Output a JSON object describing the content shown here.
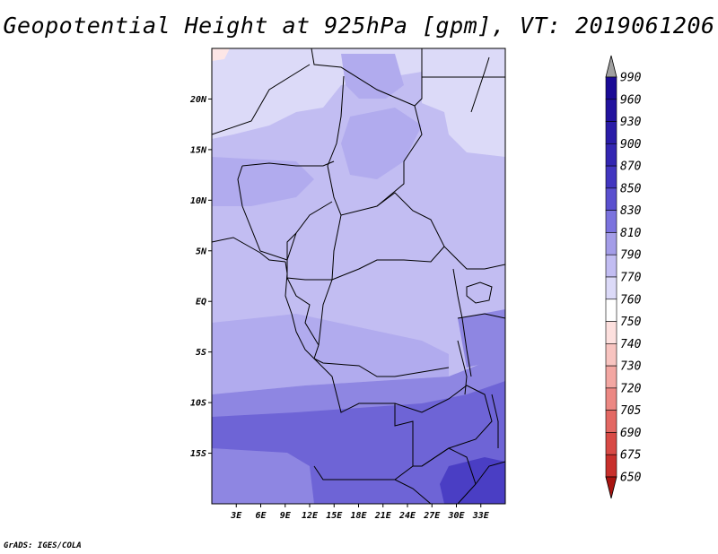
{
  "title": "Geopotential Height at 925hPa [gpm], VT: 2019061206",
  "credit": "GrADS: IGES/COLA",
  "map": {
    "lon_range": [
      0,
      36
    ],
    "lat_range": [
      -20,
      25
    ],
    "lon_ticks": [
      {
        "lon": 3,
        "label": "3E"
      },
      {
        "lon": 6,
        "label": "6E"
      },
      {
        "lon": 9,
        "label": "9E"
      },
      {
        "lon": 12,
        "label": "12E"
      },
      {
        "lon": 15,
        "label": "15E"
      },
      {
        "lon": 18,
        "label": "18E"
      },
      {
        "lon": 21,
        "label": "21E"
      },
      {
        "lon": 24,
        "label": "24E"
      },
      {
        "lon": 27,
        "label": "27E"
      },
      {
        "lon": 30,
        "label": "30E"
      },
      {
        "lon": 33,
        "label": "33E"
      }
    ],
    "lat_ticks": [
      {
        "lat": 20,
        "label": "20N"
      },
      {
        "lat": 15,
        "label": "15N"
      },
      {
        "lat": 10,
        "label": "10N"
      },
      {
        "lat": 5,
        "label": "5N"
      },
      {
        "lat": 0,
        "label": "EQ"
      },
      {
        "lat": -5,
        "label": "5S"
      },
      {
        "lat": -10,
        "label": "10S"
      },
      {
        "lat": -15,
        "label": "15S"
      }
    ]
  },
  "colorbar": {
    "levels": [
      {
        "label": "990",
        "color": "#1a0a96"
      },
      {
        "label": "960",
        "color": "#22139e"
      },
      {
        "label": "930",
        "color": "#2a1ca8"
      },
      {
        "label": "900",
        "color": "#3326b2"
      },
      {
        "label": "870",
        "color": "#4236c0"
      },
      {
        "label": "850",
        "color": "#5a50cf"
      },
      {
        "label": "830",
        "color": "#7b73de"
      },
      {
        "label": "810",
        "color": "#a49de8"
      },
      {
        "label": "790",
        "color": "#c2bdf2"
      },
      {
        "label": "770",
        "color": "#dcdaf8"
      },
      {
        "label": "760",
        "color": "#ffffff"
      },
      {
        "label": "750",
        "color": "#fde0de"
      },
      {
        "label": "740",
        "color": "#f8c4c0"
      },
      {
        "label": "730",
        "color": "#f3a7a2"
      },
      {
        "label": "720",
        "color": "#ec8883"
      },
      {
        "label": "705",
        "color": "#e36863"
      },
      {
        "label": "690",
        "color": "#d84a45"
      },
      {
        "label": "675",
        "color": "#c8302c"
      },
      {
        "label": "650",
        "color": "#b01c18"
      }
    ],
    "over_color": "#a0a0a0",
    "under_color": "#a81410"
  },
  "field_colors": {
    "c770": "#dcdaf8",
    "c790": "#c2bdf2",
    "c810": "#b1abee",
    "c830": "#8e86e2",
    "c850": "#6e64d6",
    "c870": "#4a3ec4",
    "c760": "#fde6e6"
  }
}
